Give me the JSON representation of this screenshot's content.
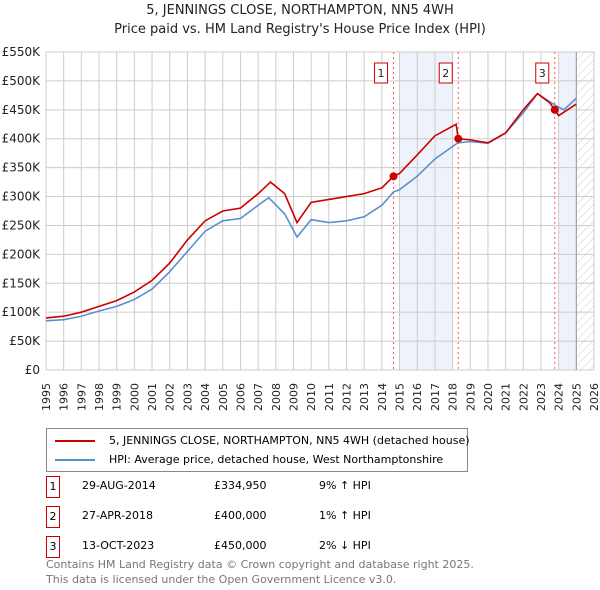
{
  "chart_data": {
    "type": "line",
    "title": "5, JENNINGS CLOSE, NORTHAMPTON, NN5 4WH",
    "subtitle": "Price paid vs. HM Land Registry's House Price Index (HPI)",
    "xlim": [
      1995,
      2026
    ],
    "ylim": [
      0,
      550000
    ],
    "x_ticks": [
      "1995",
      "1996",
      "1997",
      "1998",
      "1999",
      "2000",
      "2001",
      "2002",
      "2003",
      "2004",
      "2005",
      "2006",
      "2007",
      "2008",
      "2009",
      "2010",
      "2011",
      "2012",
      "2013",
      "2014",
      "2015",
      "2016",
      "2017",
      "2018",
      "2019",
      "2020",
      "2021",
      "2022",
      "2023",
      "2024",
      "2025",
      "2026"
    ],
    "y_ticks": [
      "£0",
      "£50K",
      "£100K",
      "£150K",
      "£200K",
      "£250K",
      "£300K",
      "£350K",
      "£400K",
      "£450K",
      "£500K",
      "£550K"
    ],
    "grid": true,
    "series": [
      {
        "name": "5, JENNINGS CLOSE, NORTHAMPTON, NN5 4WH (detached house)",
        "color": "#cc0000",
        "x": [
          1995,
          1996,
          1997,
          1998,
          1999,
          2000,
          2001,
          2002,
          2003,
          2004,
          2005,
          2006,
          2007,
          2007.7,
          2008.5,
          2009.2,
          2010,
          2011,
          2012,
          2013,
          2014,
          2014.66,
          2015,
          2016,
          2017,
          2018.2,
          2018.32,
          2019,
          2020,
          2021,
          2022,
          2022.8,
          2023.5,
          2023.78,
          2024,
          2025
        ],
        "y": [
          90000,
          93000,
          100000,
          110000,
          120000,
          135000,
          155000,
          185000,
          225000,
          258000,
          275000,
          280000,
          305000,
          325000,
          305000,
          255000,
          290000,
          295000,
          300000,
          305000,
          315000,
          334950,
          340000,
          372000,
          405000,
          425000,
          400000,
          398000,
          393000,
          410000,
          450000,
          478000,
          462000,
          450000,
          440000,
          460000
        ]
      },
      {
        "name": "HPI: Average price, detached house, West Northamptonshire",
        "color": "#5b8fd4",
        "x": [
          1995,
          1996,
          1997,
          1998,
          1999,
          2000,
          2001,
          2002,
          2003,
          2004,
          2005,
          2006,
          2007,
          2007.6,
          2008.5,
          2009.2,
          2010,
          2011,
          2012,
          2013,
          2014,
          2014.66,
          2015,
          2016,
          2017,
          2018.3,
          2019,
          2020,
          2021,
          2022,
          2022.8,
          2023.8,
          2024.3,
          2025
        ],
        "y": [
          85000,
          87000,
          93000,
          102000,
          110000,
          122000,
          140000,
          170000,
          205000,
          240000,
          258000,
          262000,
          285000,
          298000,
          270000,
          230000,
          260000,
          255000,
          258000,
          265000,
          285000,
          308000,
          312000,
          335000,
          365000,
          393000,
          395000,
          392000,
          410000,
          445000,
          478000,
          458000,
          450000,
          470000
        ]
      }
    ],
    "sales": [
      {
        "label": "1",
        "x": 2014.66,
        "date": "29-AUG-2014",
        "price": "£334,950",
        "value": 334950,
        "hpi": "9% ↑ HPI"
      },
      {
        "label": "2",
        "x": 2018.32,
        "date": "27-APR-2018",
        "price": "£400,000",
        "value": 400000,
        "hpi": "1% ↑ HPI"
      },
      {
        "label": "3",
        "x": 2023.78,
        "date": "13-OCT-2023",
        "price": "£450,000",
        "value": 450000,
        "hpi": "2% ↓ HPI"
      }
    ],
    "legend_placement": "below"
  },
  "footer": [
    "Contains HM Land Registry data © Crown copyright and database right 2025.",
    "This data is licensed under the Open Government Licence v3.0."
  ]
}
